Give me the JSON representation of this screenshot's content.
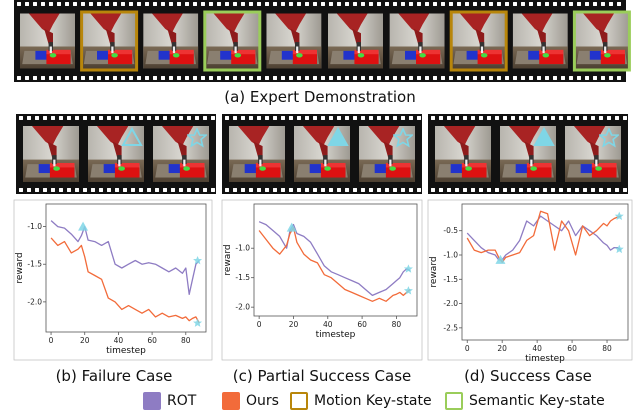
{
  "captions": {
    "a": "(a) Expert Demonstration",
    "b": "(b) Failure Case",
    "c": "(c) Partial Success Case",
    "d": "(d) Success Case"
  },
  "legend": [
    {
      "label": "ROT",
      "kind": "fill",
      "color": "#8e7cc3"
    },
    {
      "label": "Ours",
      "kind": "fill",
      "color": "#f26b3a"
    },
    {
      "label": "Motion Key-state",
      "kind": "outline",
      "color": "#b8860b"
    },
    {
      "label": "Semantic Key-state",
      "kind": "outline",
      "color": "#9acd5a"
    }
  ],
  "demo_frames": [
    {
      "highlight": "none"
    },
    {
      "highlight": "motion"
    },
    {
      "highlight": "none"
    },
    {
      "highlight": "semantic"
    },
    {
      "highlight": "none"
    },
    {
      "highlight": "none"
    },
    {
      "highlight": "none"
    },
    {
      "highlight": "motion"
    },
    {
      "highlight": "none"
    },
    {
      "highlight": "semantic"
    }
  ],
  "case_frame_markers": [
    [
      "none",
      "triangle-outline",
      "star-outline"
    ],
    [
      "none",
      "triangle",
      "star-outline"
    ],
    [
      "none",
      "triangle",
      "star-outline"
    ]
  ],
  "colors": {
    "rot": "#8e7cc3",
    "ours": "#f26b3a",
    "marker": "#7fd6e6"
  },
  "chart_data": [
    {
      "type": "line",
      "xlabel": "timestep",
      "ylabel": "reward",
      "xticks": [
        0,
        20,
        40,
        60,
        80
      ],
      "yticks": [
        -1.0,
        -1.5,
        -2.0
      ],
      "xlim": [
        -3,
        92
      ],
      "ylim": [
        -2.4,
        -0.7
      ],
      "x": [
        0,
        4,
        8,
        12,
        16,
        18,
        20,
        22,
        26,
        30,
        34,
        38,
        42,
        46,
        50,
        54,
        58,
        62,
        66,
        70,
        74,
        78,
        80,
        82,
        84,
        86,
        88
      ],
      "series": [
        {
          "name": "ROT",
          "values": [
            -0.92,
            -1.0,
            -1.02,
            -1.1,
            -1.2,
            -1.12,
            -1.0,
            -1.18,
            -1.2,
            -1.25,
            -1.2,
            -1.5,
            -1.55,
            -1.5,
            -1.45,
            -1.5,
            -1.48,
            -1.5,
            -1.55,
            -1.6,
            -1.55,
            -1.62,
            -1.55,
            -1.9,
            -1.7,
            -1.5,
            -1.45
          ]
        },
        {
          "name": "Ours",
          "values": [
            -1.15,
            -1.25,
            -1.2,
            -1.35,
            -1.3,
            -1.25,
            -1.4,
            -1.6,
            -1.65,
            -1.7,
            -1.95,
            -2.0,
            -2.1,
            -2.05,
            -2.1,
            -2.15,
            -2.1,
            -2.2,
            -2.15,
            -2.2,
            -2.18,
            -2.22,
            -2.2,
            -2.25,
            -2.22,
            -2.2,
            -2.28
          ]
        }
      ],
      "markers": [
        {
          "shape": "triangle",
          "x": 19,
          "y": -1.0
        },
        {
          "shape": "star",
          "x": 87,
          "y": -1.45
        },
        {
          "shape": "star",
          "x": 87,
          "y": -2.28
        }
      ]
    },
    {
      "type": "line",
      "xlabel": "timestep",
      "ylabel": "reward",
      "xticks": [
        0,
        20,
        40,
        60,
        80
      ],
      "yticks": [
        -1.0,
        -1.5,
        -2.0
      ],
      "xlim": [
        -3,
        92
      ],
      "ylim": [
        -2.15,
        -0.25
      ],
      "x": [
        0,
        4,
        8,
        12,
        16,
        18,
        20,
        22,
        26,
        30,
        34,
        38,
        42,
        46,
        50,
        54,
        58,
        62,
        66,
        70,
        74,
        78,
        80,
        82,
        84,
        86,
        88
      ],
      "series": [
        {
          "name": "ROT",
          "values": [
            -0.55,
            -0.6,
            -0.7,
            -0.8,
            -1.0,
            -0.7,
            -0.6,
            -0.75,
            -0.8,
            -0.9,
            -1.1,
            -1.3,
            -1.4,
            -1.45,
            -1.5,
            -1.55,
            -1.6,
            -1.7,
            -1.8,
            -1.75,
            -1.7,
            -1.6,
            -1.55,
            -1.5,
            -1.4,
            -1.35,
            -1.38
          ]
        },
        {
          "name": "Ours",
          "values": [
            -0.7,
            -0.85,
            -1.0,
            -1.1,
            -0.95,
            -0.75,
            -0.65,
            -0.9,
            -1.1,
            -1.2,
            -1.25,
            -1.45,
            -1.5,
            -1.6,
            -1.7,
            -1.75,
            -1.8,
            -1.85,
            -1.9,
            -1.85,
            -1.9,
            -1.8,
            -1.78,
            -1.75,
            -1.8,
            -1.75,
            -1.7
          ]
        }
      ],
      "markers": [
        {
          "shape": "triangle",
          "x": 19,
          "y": -0.65
        },
        {
          "shape": "star",
          "x": 87,
          "y": -1.35
        },
        {
          "shape": "star",
          "x": 87,
          "y": -1.72
        }
      ]
    },
    {
      "type": "line",
      "xlabel": "timestep",
      "ylabel": "reward",
      "xticks": [
        0,
        20,
        40,
        60,
        80
      ],
      "yticks": [
        -0.5,
        -1.0,
        -1.5,
        -2.0,
        -2.5
      ],
      "xlim": [
        -3,
        92
      ],
      "ylim": [
        -2.75,
        0.05
      ],
      "x": [
        0,
        4,
        8,
        12,
        16,
        18,
        20,
        22,
        26,
        30,
        34,
        38,
        42,
        46,
        50,
        54,
        58,
        62,
        66,
        70,
        74,
        78,
        80,
        82,
        84,
        86,
        88
      ],
      "series": [
        {
          "name": "ROT",
          "values": [
            -0.55,
            -0.7,
            -0.85,
            -0.95,
            -1.0,
            -1.1,
            -1.1,
            -1.0,
            -0.9,
            -0.7,
            -0.3,
            -0.4,
            -0.2,
            -0.3,
            -0.4,
            -0.5,
            -0.3,
            -0.6,
            -0.4,
            -0.5,
            -0.6,
            -0.75,
            -0.8,
            -0.9,
            -0.85,
            -0.85,
            -0.9
          ]
        },
        {
          "name": "Ours",
          "values": [
            -0.65,
            -0.9,
            -0.95,
            -0.9,
            -0.9,
            -1.05,
            -1.15,
            -1.05,
            -1.0,
            -0.95,
            -0.7,
            -0.6,
            -0.1,
            -0.15,
            -0.9,
            -0.3,
            -0.5,
            -1.0,
            -0.4,
            -0.6,
            -0.5,
            -0.35,
            -0.4,
            -0.3,
            -0.25,
            -0.22,
            -0.2
          ]
        }
      ],
      "markers": [
        {
          "shape": "triangle",
          "x": 19,
          "y": -1.1
        },
        {
          "shape": "star",
          "x": 87,
          "y": -0.2
        },
        {
          "shape": "star",
          "x": 87,
          "y": -0.88
        }
      ]
    }
  ]
}
